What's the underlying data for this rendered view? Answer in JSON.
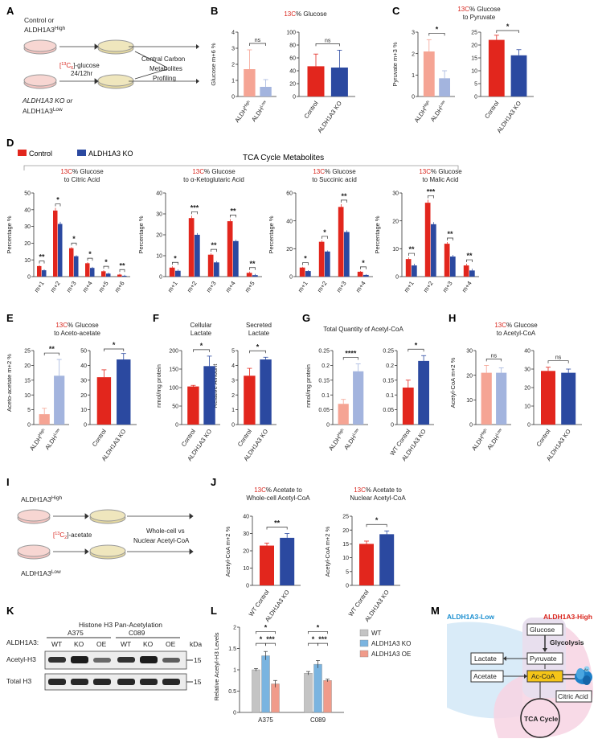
{
  "colors": {
    "red": "#e2261d",
    "blue": "#2b49a0",
    "pink": "#f5a494",
    "lightblue": "#a3b4de",
    "grey": "#bfbfbf",
    "wt_grey": "#c4c4c4",
    "ko_blue": "#7ab4e0",
    "oe_salmon": "#f09b8a",
    "accent13c": "#d9251d"
  },
  "panels": {
    "A": "A",
    "B": "B",
    "C": "C",
    "D": "D",
    "E": "E",
    "F": "F",
    "G": "G",
    "H": "H",
    "I": "I",
    "J": "J",
    "K": "K",
    "L": "L",
    "M": "M"
  },
  "schemaA": {
    "top_label": "Control or",
    "top_label2": "ALDH1A3",
    "top_sup": "High",
    "tracer": "[",
    "tracer_iso": "13",
    "tracer_rest": "C",
    "tracer_sub": "6",
    "tracer_end": "]-glucose",
    "time": "24/12hr",
    "bottom_label": "ALDH1A3 KO or",
    "bottom_label2": "ALDH1A3",
    "bottom_sup": "Low",
    "outcome1": "Central Carbon",
    "outcome2": "Metabolites",
    "outcome3": "Profiling"
  },
  "schemaI": {
    "top_label": "ALDH1A3",
    "top_sup": "High",
    "tracer": "[",
    "tracer_iso": "13",
    "tracer_rest": "C",
    "tracer_sub": "2",
    "tracer_end": "]-acetate",
    "bottom_label": "ALDH1A3",
    "bottom_sup": "Low",
    "outcome1": "Whole-cell vs",
    "outcome2": "Nuclear Acetyl-CoA"
  },
  "legendD": {
    "control": "Control",
    "ko": "ALDH1A3 KO",
    "section_title": "TCA Cycle Metabolites"
  },
  "chart_data": [
    {
      "id": "B",
      "type": "bar",
      "title_prefix": "13C",
      "title": "% Glucose",
      "ylabel": "Glucose m+6 %",
      "subplots": [
        {
          "categories": [
            "ALDH",
            "ALDH"
          ],
          "sups": [
            "High",
            "Low"
          ],
          "values": [
            1.7,
            0.6
          ],
          "errors": [
            1.2,
            0.45
          ],
          "colors": [
            "pink",
            "lightblue"
          ],
          "ylim": [
            0,
            4
          ],
          "ticks": [
            0,
            1,
            2,
            3,
            4
          ],
          "sig": "ns"
        },
        {
          "categories": [
            "Control",
            "ALDH1A3 KO"
          ],
          "values": [
            47,
            45
          ],
          "errors": [
            19,
            27
          ],
          "colors": [
            "red",
            "blue"
          ],
          "ylim": [
            0,
            100
          ],
          "ticks": [
            0,
            20,
            40,
            60,
            80,
            100
          ],
          "sig": "ns"
        }
      ]
    },
    {
      "id": "C",
      "type": "bar",
      "title_prefix": "13C",
      "title": "% Glucose",
      "title2": "to Pyruvate",
      "ylabel": "Pyruvate m+3 %",
      "subplots": [
        {
          "categories": [
            "ALDH",
            "ALDH"
          ],
          "sups": [
            "High",
            "Low"
          ],
          "values": [
            2.1,
            0.85
          ],
          "errors": [
            0.55,
            0.35
          ],
          "colors": [
            "pink",
            "lightblue"
          ],
          "ylim": [
            0,
            3
          ],
          "ticks": [
            0,
            1,
            2,
            3
          ],
          "sig": "*"
        },
        {
          "categories": [
            "Control",
            "ALDH1A3 KO"
          ],
          "values": [
            22,
            16
          ],
          "errors": [
            1.8,
            2.2
          ],
          "colors": [
            "red",
            "blue"
          ],
          "ylim": [
            0,
            25
          ],
          "ticks": [
            0,
            5,
            10,
            15,
            20,
            25
          ],
          "sig": "*"
        }
      ]
    },
    {
      "id": "D1",
      "type": "bar",
      "title_prefix": "13C",
      "title": "% Glucose",
      "title2": "to Citric Acid",
      "ylabel": "Percentage %",
      "categories": [
        "m+1",
        "m+2",
        "m+3",
        "m+4",
        "m+5",
        "m+6"
      ],
      "ylim": [
        0,
        50
      ],
      "ticks": [
        0,
        10,
        20,
        30,
        40,
        50
      ],
      "series": [
        {
          "name": "Control",
          "values": [
            6.3,
            39.5,
            17,
            8,
            3.2,
            1.2
          ]
        },
        {
          "name": "ALDH1A3 KO",
          "values": [
            3.8,
            31.5,
            12.2,
            5.2,
            1.8,
            0.5
          ]
        }
      ],
      "sig": [
        "**",
        "*",
        "*",
        "*",
        "*",
        "**"
      ]
    },
    {
      "id": "D2",
      "type": "bar",
      "title_prefix": "13C",
      "title": "% Glucose",
      "title2": "to α-Ketoglutaric Acid",
      "ylabel": "Percentage %",
      "categories": [
        "m+1",
        "m+2",
        "m+3",
        "m+4",
        "m+5"
      ],
      "ylim": [
        0,
        40
      ],
      "ticks": [
        0,
        10,
        20,
        30,
        40
      ],
      "series": [
        {
          "name": "Control",
          "values": [
            4.3,
            28,
            10.5,
            26.5,
            1.8
          ]
        },
        {
          "name": "ALDH1A3 KO",
          "values": [
            2.8,
            20,
            6.8,
            17,
            0.7
          ]
        }
      ],
      "sig": [
        "*",
        "***",
        "**",
        "**",
        "**"
      ]
    },
    {
      "id": "D3",
      "type": "bar",
      "title_prefix": "13C",
      "title": "% Glucose",
      "title2": "to Succinic acid",
      "ylabel": "Percentage %",
      "categories": [
        "m+1",
        "m+2",
        "m+3",
        "m+4"
      ],
      "ylim": [
        0,
        60
      ],
      "ticks": [
        0,
        20,
        40,
        60
      ],
      "series": [
        {
          "name": "Control",
          "values": [
            6.5,
            25,
            50,
            3.5
          ]
        },
        {
          "name": "ALDH1A3 KO",
          "values": [
            4,
            18,
            32,
            1.2
          ]
        }
      ],
      "sig": [
        "*",
        "*",
        "**",
        "*"
      ]
    },
    {
      "id": "D4",
      "type": "bar",
      "title_prefix": "13C",
      "title": "% Glucose",
      "title2": "to Malic Acid",
      "ylabel": "Percentage %",
      "categories": [
        "m+1",
        "m+2",
        "m+3",
        "m+4"
      ],
      "ylim": [
        0,
        30
      ],
      "ticks": [
        0,
        10,
        20,
        30
      ],
      "series": [
        {
          "name": "Control",
          "values": [
            6.3,
            26.5,
            11.8,
            4
          ]
        },
        {
          "name": "ALDH1A3 KO",
          "values": [
            4,
            18.8,
            7.2,
            2.2
          ]
        }
      ],
      "sig": [
        "**",
        "***",
        "**",
        "**"
      ]
    },
    {
      "id": "E",
      "type": "bar",
      "title_prefix": "13C",
      "title": "% Glucose",
      "title2": "to Aceto-acetate",
      "ylabel": "Aceto-acetate m+2 %",
      "subplots": [
        {
          "categories": [
            "ALDH",
            "ALDH"
          ],
          "sups": [
            "High",
            "Low"
          ],
          "values": [
            3.5,
            16.5
          ],
          "errors": [
            2,
            5.5
          ],
          "colors": [
            "pink",
            "lightblue"
          ],
          "ylim": [
            0,
            25
          ],
          "ticks": [
            0,
            5,
            10,
            15,
            20,
            25
          ],
          "sig": "**"
        },
        {
          "categories": [
            "Control",
            "ALDH1A3 KO"
          ],
          "values": [
            32,
            44
          ],
          "errors": [
            5,
            4
          ],
          "colors": [
            "red",
            "blue"
          ],
          "ylim": [
            0,
            50
          ],
          "ticks": [
            0,
            10,
            20,
            30,
            40,
            50
          ],
          "sig": "*"
        }
      ]
    },
    {
      "id": "F",
      "type": "bar",
      "ylabel": "nmol/mg protein",
      "subplots": [
        {
          "title": "Cellular",
          "title2": "Lactate",
          "ylabel": "nmol/mg protein",
          "categories": [
            "Control",
            "ALDH1A3 KO"
          ],
          "values": [
            103,
            158
          ],
          "errors": [
            3,
            27
          ],
          "colors": [
            "red",
            "blue"
          ],
          "ylim": [
            0,
            200
          ],
          "ticks": [
            0,
            50,
            100,
            150,
            200
          ],
          "sig": "*"
        },
        {
          "title": "Secreted",
          "title2": "Lactate",
          "ylabel": "Relative Amount",
          "categories": [
            "Control",
            "ALDH1A3 KO"
          ],
          "values": [
            3.3,
            4.4
          ],
          "errors": [
            0.5,
            0.15
          ],
          "colors": [
            "red",
            "blue"
          ],
          "ylim": [
            0,
            5
          ],
          "ticks": [
            0,
            1,
            2,
            3,
            4,
            5
          ],
          "sig": "*"
        }
      ]
    },
    {
      "id": "G",
      "type": "bar",
      "title": "Total Quantity of Acetyl-CoA",
      "ylabel": "nmol/mg protein",
      "subplots": [
        {
          "categories": [
            "ALDH",
            "ALDH"
          ],
          "sups": [
            "High",
            "Low"
          ],
          "values": [
            0.07,
            0.18
          ],
          "errors": [
            0.015,
            0.025
          ],
          "colors": [
            "pink",
            "lightblue"
          ],
          "ylim": [
            0,
            0.25
          ],
          "ticks": [
            0,
            0.05,
            0.1,
            0.15,
            0.2,
            0.25
          ],
          "sig": "****"
        },
        {
          "categories": [
            "WT Control",
            "ALDH1A3 KO"
          ],
          "values": [
            0.125,
            0.215
          ],
          "errors": [
            0.025,
            0.018
          ],
          "colors": [
            "red",
            "blue"
          ],
          "ylim": [
            0,
            0.25
          ],
          "ticks": [
            0,
            0.05,
            0.1,
            0.15,
            0.2,
            0.25
          ],
          "sig": "*"
        }
      ]
    },
    {
      "id": "H",
      "type": "bar",
      "title_prefix": "13C",
      "title": "% Glucose",
      "title2": "to Acetyl-CoA",
      "ylabel": "Acetyl-CoA m+2 %",
      "subplots": [
        {
          "categories": [
            "ALDH",
            "ALDH"
          ],
          "sups": [
            "High",
            "Low"
          ],
          "values": [
            21,
            21
          ],
          "errors": [
            3,
            2
          ],
          "colors": [
            "pink",
            "lightblue"
          ],
          "ylim": [
            0,
            30
          ],
          "ticks": [
            0,
            10,
            20,
            30
          ],
          "sig": "ns"
        },
        {
          "categories": [
            "Control",
            "ALDH1A3 KO"
          ],
          "values": [
            29,
            28
          ],
          "errors": [
            2,
            2
          ],
          "colors": [
            "red",
            "blue"
          ],
          "ylim": [
            0,
            40
          ],
          "ticks": [
            0,
            10,
            20,
            30,
            40
          ],
          "sig": "ns"
        }
      ]
    },
    {
      "id": "J",
      "type": "bar",
      "subplots": [
        {
          "title_prefix": "13C",
          "title": "% Acetate to",
          "title2": "Whole-cell Acetyl-CoA",
          "ylabel": "Acetyl-CoA m+2 %",
          "categories": [
            "WT Control",
            "ALDH1A3 KO"
          ],
          "values": [
            23,
            27.5
          ],
          "errors": [
            1.5,
            2.5
          ],
          "colors": [
            "red",
            "blue"
          ],
          "ylim": [
            0,
            40
          ],
          "ticks": [
            0,
            10,
            20,
            30,
            40
          ],
          "sig": "**"
        },
        {
          "title_prefix": "13C",
          "title": "% Acetate to",
          "title2": "Nuclear Acetyl-CoA",
          "ylabel": "Acetyl-CoA m+2 %",
          "categories": [
            "WT Control",
            "ALDH1A3 KO"
          ],
          "values": [
            15,
            18.5
          ],
          "errors": [
            1,
            1.2
          ],
          "colors": [
            "red",
            "blue"
          ],
          "ylim": [
            0,
            25
          ],
          "ticks": [
            0,
            5,
            10,
            15,
            20,
            25
          ],
          "sig": "*"
        }
      ]
    },
    {
      "id": "L",
      "type": "bar",
      "ylabel": "Relative Acetyl-H3 Levels",
      "groups": [
        "A375",
        "C089"
      ],
      "ylim": [
        0,
        2
      ],
      "ticks": [
        0,
        0.5,
        1,
        1.5,
        2
      ],
      "series": [
        {
          "name": "WT",
          "values": [
            1.0,
            0.92
          ],
          "errors": [
            0.03,
            0.04
          ]
        },
        {
          "name": "ALDH1A3 KO",
          "values": [
            1.33,
            1.13
          ],
          "errors": [
            0.1,
            0.09
          ]
        },
        {
          "name": "ALDH1A3 OE",
          "values": [
            0.67,
            0.75
          ],
          "errors": [
            0.08,
            0.03
          ]
        }
      ],
      "sig": [
        "*",
        "***",
        "*"
      ]
    }
  ],
  "blotK": {
    "title": "Histone H3 Pan-Acetylation",
    "row_label": "ALDH1A3:",
    "kda": "kDa",
    "lines": [
      "A375",
      "C089"
    ],
    "lanes": [
      "WT",
      "KO",
      "OE",
      "WT",
      "KO",
      "OE"
    ],
    "rows": [
      {
        "label": "Acetyl-H3",
        "mw": "15"
      },
      {
        "label": "Total H3",
        "mw": "15"
      }
    ]
  },
  "diagramM": {
    "low": "ALDH1A3-Low",
    "high": "ALDH1A3-High",
    "glucose": "Glucose",
    "glycolysis": "Glycolysis",
    "lactate": "Lactate",
    "pyruvate": "Pyruvate",
    "acetate": "Acetate",
    "accoa": "Ac-CoA",
    "citric": "Citric Acid",
    "tca": "TCA Cycle",
    "ac": "Ac",
    "low_color": "#1b8fd0",
    "high_color": "#d9251d"
  }
}
